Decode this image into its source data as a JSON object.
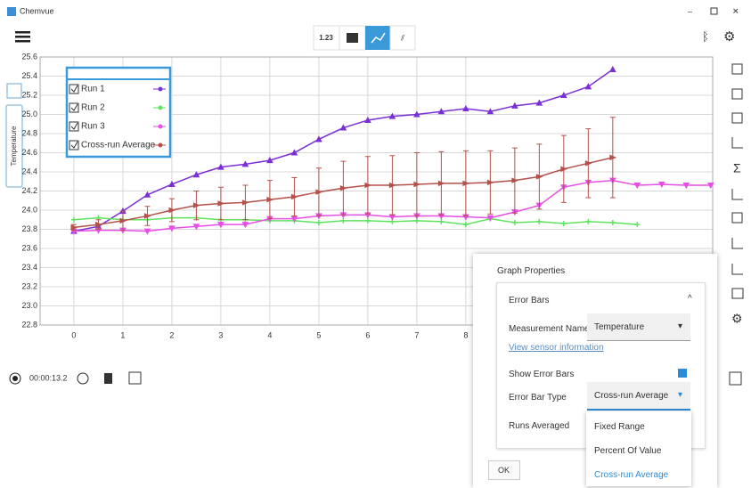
{
  "window": {
    "title": "Chemvue"
  },
  "toolbar": {
    "digits_button": "1.23"
  },
  "chart_data": {
    "type": "line",
    "ylabel": "Temperature",
    "x": [
      0,
      0.5,
      1,
      1.5,
      2,
      2.5,
      3,
      3.5,
      4,
      4.5,
      5,
      5.5,
      6,
      6.5,
      7,
      7.5,
      8,
      8.5,
      9,
      9.5,
      10,
      10.5,
      11,
      11.5,
      12,
      12.5,
      13
    ],
    "xlim": [
      -0.69,
      13.04
    ],
    "xticks": [
      0,
      1,
      2,
      3,
      4,
      5,
      6,
      7,
      8
    ],
    "ylim": [
      22.8,
      25.6
    ],
    "yticks": [
      {
        "value": 22.8,
        "label": "22.8"
      },
      {
        "value": 23,
        "label": "23.0"
      },
      {
        "value": 23.2,
        "label": "23.2"
      },
      {
        "value": 23.4,
        "label": "23.4"
      },
      {
        "value": 23.6,
        "label": "23.6"
      },
      {
        "value": 23.8,
        "label": "23.8"
      },
      {
        "value": 24,
        "label": "24.0"
      },
      {
        "value": 24.2,
        "label": "24.2"
      },
      {
        "value": 24.4,
        "label": "24.4"
      },
      {
        "value": 24.6,
        "label": "24.6"
      },
      {
        "value": 24.8,
        "label": "24.8"
      },
      {
        "value": 25,
        "label": "25.0"
      },
      {
        "value": 25.2,
        "label": "25.2"
      },
      {
        "value": 25.4,
        "label": "25.4"
      },
      {
        "value": 25.6,
        "label": "25.6"
      }
    ],
    "grid": true,
    "legend": "upper left",
    "series": [
      {
        "name": "Run 1",
        "color": "#7b2fd6",
        "values": [
          23.78,
          23.83,
          23.99,
          24.16,
          24.27,
          24.37,
          24.45,
          24.48,
          24.52,
          24.6,
          24.74,
          24.86,
          24.94,
          24.98,
          25.0,
          25.03,
          25.06,
          25.03,
          25.09,
          25.12,
          25.2,
          25.29,
          25.47,
          null,
          null,
          null,
          null
        ]
      },
      {
        "name": "Run 2",
        "color": "#5fe35f",
        "values": [
          23.9,
          23.92,
          23.9,
          23.9,
          23.92,
          23.92,
          23.9,
          23.9,
          23.89,
          23.89,
          23.87,
          23.89,
          23.89,
          23.88,
          23.89,
          23.88,
          23.85,
          23.91,
          23.87,
          23.88,
          23.86,
          23.88,
          23.87,
          23.85,
          null,
          null,
          null
        ]
      },
      {
        "name": "Run 3",
        "color": "#e64ee6",
        "values": [
          23.78,
          23.79,
          23.79,
          23.78,
          23.81,
          23.83,
          23.85,
          23.85,
          23.91,
          23.91,
          23.94,
          23.95,
          23.95,
          23.93,
          23.94,
          23.94,
          23.93,
          23.92,
          23.98,
          24.05,
          24.24,
          24.29,
          24.31,
          24.26,
          24.27,
          24.26,
          24.26
        ]
      },
      {
        "name": "Cross-run Average",
        "color": "#b5514a",
        "values": [
          23.82,
          23.85,
          23.89,
          23.94,
          24.0,
          24.05,
          24.07,
          24.08,
          24.11,
          24.14,
          24.19,
          24.23,
          24.26,
          24.26,
          24.27,
          24.28,
          24.28,
          24.29,
          24.31,
          24.35,
          24.43,
          24.49,
          24.55,
          null,
          null,
          null,
          null
        ],
        "errors": [
          0.03,
          0.05,
          0.1,
          0.1,
          0.12,
          0.15,
          0.17,
          0.18,
          0.2,
          0.2,
          0.25,
          0.28,
          0.3,
          0.31,
          0.33,
          0.33,
          0.34,
          0.33,
          0.34,
          0.34,
          0.35,
          0.36,
          0.42,
          null,
          null,
          null,
          null
        ]
      }
    ]
  },
  "timer": "00:00:13.2",
  "panel": {
    "title": "Graph Properties",
    "section": "Error Bars",
    "measurement_label": "Measurement Name",
    "measurement_value": "Temperature",
    "link": "View sensor information",
    "show_label": "Show Error Bars",
    "type_label": "Error Bar Type",
    "type_value": "Cross-run Average",
    "runs_label": "Runs Averaged",
    "options": [
      "Fixed Range",
      "Percent Of Value",
      "Cross-run Average"
    ],
    "ok": "OK"
  }
}
